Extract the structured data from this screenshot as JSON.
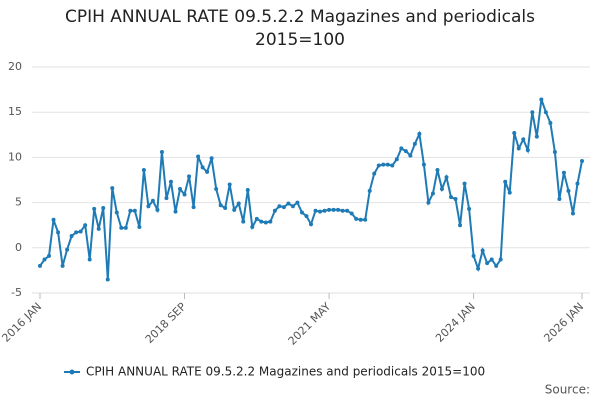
{
  "chart_data": {
    "type": "line",
    "title": "CPIH ANNUAL RATE 09.5.2.2 Magazines and periodicals 2015=100",
    "source": "Source:",
    "categories": [
      "2016 JAN",
      null,
      null,
      null,
      null,
      null,
      null,
      null,
      null,
      null,
      null,
      null,
      null,
      null,
      null,
      null,
      null,
      null,
      null,
      null,
      null,
      null,
      null,
      null,
      null,
      null,
      null,
      null,
      null,
      null,
      null,
      null,
      "2018 SEP",
      null,
      null,
      null,
      null,
      null,
      null,
      null,
      null,
      null,
      null,
      null,
      null,
      null,
      null,
      null,
      null,
      null,
      null,
      null,
      null,
      null,
      null,
      null,
      null,
      null,
      null,
      null,
      null,
      null,
      null,
      null,
      "2021 MAY",
      null,
      null,
      null,
      null,
      null,
      null,
      null,
      null,
      null,
      null,
      null,
      null,
      null,
      null,
      null,
      null,
      null,
      null,
      null,
      null,
      null,
      null,
      null,
      null,
      null,
      null,
      null,
      null,
      null,
      null,
      null,
      "2024 JAN",
      null,
      null,
      null,
      null,
      null,
      null,
      null,
      null,
      null,
      null,
      null,
      null,
      null,
      null,
      null,
      null,
      null,
      null,
      null,
      null,
      null,
      null,
      null,
      "2026 JAN"
    ],
    "series": [
      {
        "name": "CPIH ANNUAL RATE 09.5.2.2 Magazines and periodicals 2015=100",
        "color": "#1f7bb6",
        "values": [
          -2.0,
          -1.3,
          -0.9,
          3.1,
          1.7,
          -2.0,
          -0.2,
          1.3,
          1.7,
          1.8,
          2.5,
          -1.3,
          4.3,
          2.1,
          4.4,
          -3.5,
          6.6,
          3.9,
          2.2,
          2.2,
          4.1,
          4.1,
          2.3,
          8.6,
          4.6,
          5.2,
          4.2,
          10.6,
          5.5,
          7.3,
          4.0,
          6.5,
          5.9,
          7.9,
          4.5,
          10.1,
          8.9,
          8.4,
          9.9,
          6.5,
          4.7,
          4.4,
          7.0,
          4.2,
          4.9,
          2.9,
          6.4,
          2.3,
          3.2,
          2.9,
          2.8,
          2.9,
          4.1,
          4.6,
          4.5,
          4.9,
          4.6,
          5.0,
          3.9,
          3.5,
          2.6,
          4.1,
          4.0,
          4.1,
          4.2,
          4.2,
          4.2,
          4.1,
          4.1,
          3.8,
          3.2,
          3.1,
          3.1,
          6.3,
          8.2,
          9.1,
          9.2,
          9.2,
          9.1,
          9.8,
          11.0,
          10.7,
          10.2,
          11.5,
          12.6,
          9.2,
          5.0,
          6.0,
          8.6,
          6.5,
          7.8,
          5.6,
          5.4,
          2.5,
          7.1,
          4.3,
          -0.9,
          -2.3,
          -0.3,
          -1.7,
          -1.3,
          -2.0,
          -1.3,
          7.3,
          6.1,
          12.7,
          11.0,
          12.0,
          10.8,
          15.0,
          12.3,
          16.4,
          15.0,
          13.8,
          10.6,
          5.4,
          8.3,
          6.3,
          3.8,
          7.1,
          9.6
        ]
      }
    ],
    "ylim": [
      -5,
      20
    ],
    "yticks": [
      -5,
      0,
      5,
      10,
      15,
      20
    ],
    "grid": true,
    "legend": "bottom"
  }
}
